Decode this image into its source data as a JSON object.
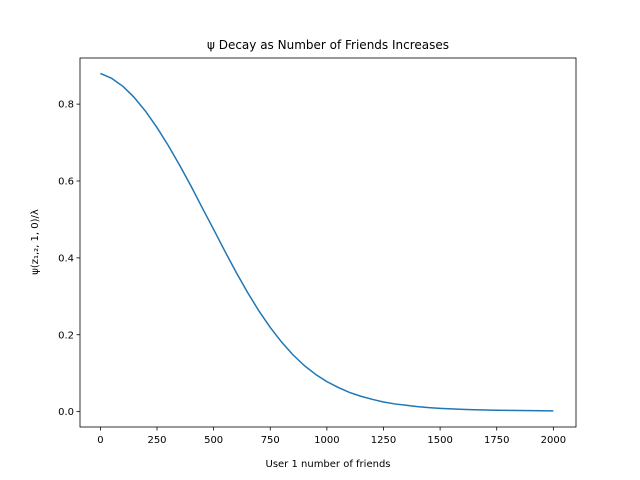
{
  "chart_data": {
    "type": "line",
    "title": "ψ Decay as Number of Friends Increases",
    "xlabel": "User 1 number of friends",
    "ylabel": "ψ(z₁,₂, 1, 0)/λ",
    "xlim": [
      -90,
      2100
    ],
    "ylim": [
      -0.04,
      0.92
    ],
    "x_ticks": [
      0,
      250,
      500,
      750,
      1000,
      1250,
      1500,
      1750,
      2000
    ],
    "x_tick_labels": [
      "0",
      "250",
      "500",
      "750",
      "1000",
      "1250",
      "1500",
      "1750",
      "2000"
    ],
    "y_ticks": [
      0.0,
      0.2,
      0.4,
      0.6,
      0.8
    ],
    "y_tick_labels": [
      "0.0",
      "0.2",
      "0.4",
      "0.6",
      "0.8"
    ],
    "grid": false,
    "series": [
      {
        "color": "#1f77b4",
        "x": [
          0,
          50,
          100,
          150,
          200,
          250,
          300,
          350,
          400,
          450,
          500,
          550,
          600,
          650,
          700,
          750,
          800,
          850,
          900,
          950,
          1000,
          1050,
          1100,
          1150,
          1200,
          1250,
          1300,
          1350,
          1400,
          1450,
          1500,
          1550,
          1600,
          1650,
          1700,
          1750,
          1800,
          1850,
          1900,
          1950,
          2000
        ],
        "y": [
          0.88,
          0.867,
          0.846,
          0.817,
          0.781,
          0.739,
          0.692,
          0.641,
          0.587,
          0.53,
          0.474,
          0.417,
          0.362,
          0.31,
          0.262,
          0.219,
          0.181,
          0.148,
          0.12,
          0.097,
          0.078,
          0.063,
          0.05,
          0.04,
          0.032,
          0.025,
          0.02,
          0.0165,
          0.013,
          0.0105,
          0.0085,
          0.007,
          0.0058,
          0.0049,
          0.0042,
          0.0036,
          0.0032,
          0.0028,
          0.0025,
          0.0023,
          0.0021
        ]
      }
    ]
  }
}
